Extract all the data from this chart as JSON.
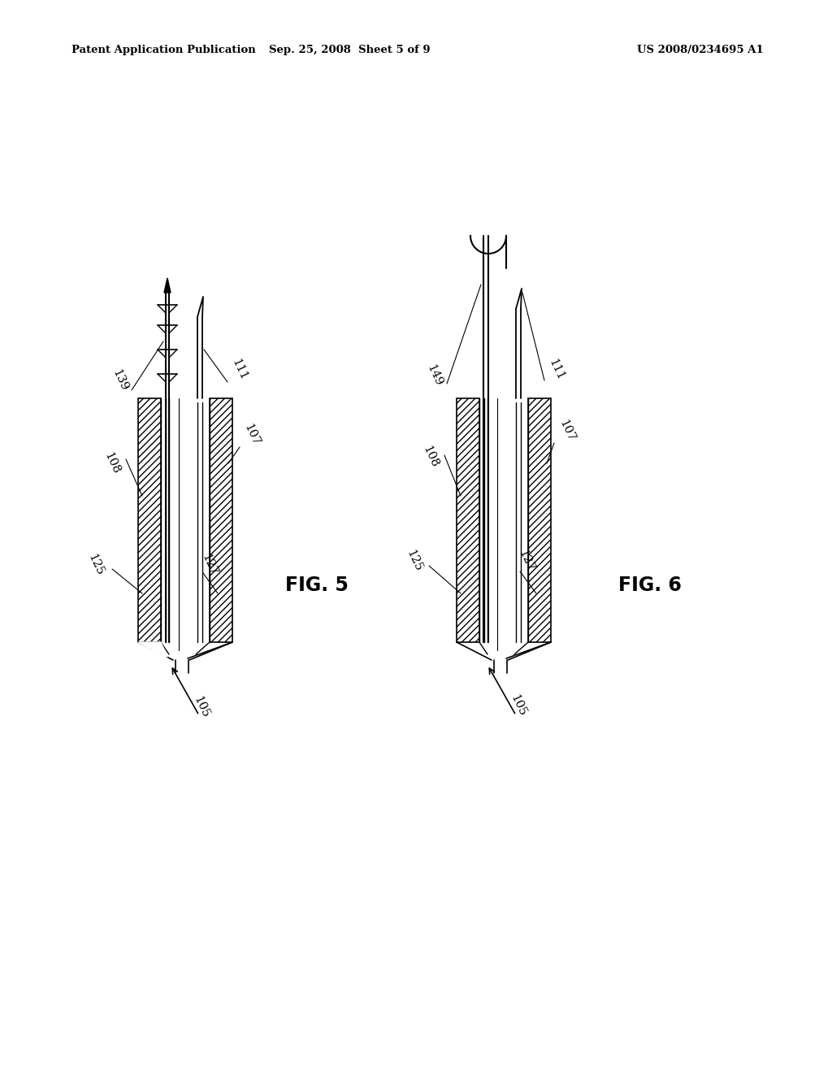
{
  "background_color": "#ffffff",
  "header_left": "Patent Application Publication",
  "header_center": "Sep. 25, 2008  Sheet 5 of 9",
  "header_right": "US 2008/0234695 A1",
  "fig5_label": "FIG. 5",
  "fig6_label": "FIG. 6"
}
